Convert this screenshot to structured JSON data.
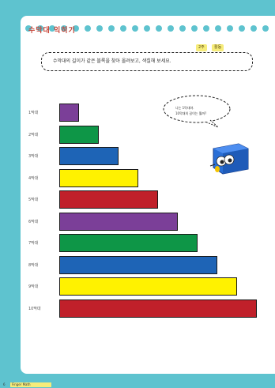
{
  "header": {
    "title": "수막대 익히기",
    "badges": [
      "2주",
      "활동"
    ],
    "instruction": "수막대의 길이가 같은 블록을 찾아 올려보고, 색칠해 보세요."
  },
  "speech": {
    "lines": [
      "나는 1막대야.",
      "10막대의 길이는 뭘까?"
    ]
  },
  "rows": [
    {
      "label": "1막대",
      "units": 1,
      "color": "#7b3f98"
    },
    {
      "label": "2막대",
      "units": 2,
      "color": "#0e9647"
    },
    {
      "label": "3막대",
      "units": 3,
      "color": "#1e64b6"
    },
    {
      "label": "4막대",
      "units": 4,
      "color": "#fff200"
    },
    {
      "label": "5막대",
      "units": 5,
      "color": "#c0202a"
    },
    {
      "label": "6막대",
      "units": 6,
      "color": "#7b3f98"
    },
    {
      "label": "7막대",
      "units": 7,
      "color": "#0e9647"
    },
    {
      "label": "8막대",
      "units": 8,
      "color": "#1e64b6"
    },
    {
      "label": "9막대",
      "units": 9,
      "color": "#fff200"
    },
    {
      "label": "10막대",
      "units": 10,
      "color": "#c0202a"
    }
  ],
  "footer": {
    "page_number": "6",
    "series": "Finger Math"
  },
  "colors": {
    "background": "#5ec3cf",
    "dot": "#5ec3cf",
    "title": "#c8463a",
    "badge": "#f6ec7a"
  }
}
